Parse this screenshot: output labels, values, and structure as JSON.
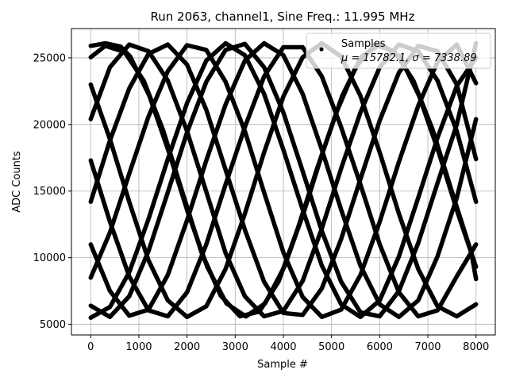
{
  "chart_data": {
    "type": "scatter",
    "title": "Run 2063, channel1, Sine Freq.: 11.995 MHz",
    "xlabel": "Sample #",
    "ylabel": "ADC Counts",
    "xlim": [
      -400,
      8400
    ],
    "ylim": [
      4200,
      27200
    ],
    "xticks": [
      0,
      1000,
      2000,
      3000,
      4000,
      5000,
      6000,
      7000,
      8000
    ],
    "xtick_labels": [
      "0",
      "1000",
      "2000",
      "3000",
      "4000",
      "5000",
      "6000",
      "7000",
      "8000"
    ],
    "yticks": [
      5000,
      10000,
      15000,
      20000,
      25000
    ],
    "ytick_labels": [
      "5000",
      "10000",
      "15000",
      "20000",
      "25000"
    ],
    "grid": true,
    "legend": {
      "placement": "top-right",
      "entries": [
        {
          "label": "Samples",
          "stats": "μ = 15782.1, σ = 7338.89"
        }
      ]
    },
    "series": [
      {
        "name": "Samples",
        "color": "#000000",
        "curves": [
          {
            "x": [
              0,
              310,
              620,
              820,
              1220,
              1620,
              2020,
              2420,
              2820,
              3220,
              3620,
              4020,
              4420,
              4820,
              5220,
              5620,
              6020,
              6420,
              6820,
              7220,
              7620,
              8000
            ],
            "y": [
              25900,
              26100,
              25850,
              25100,
              22130,
              17960,
              13360,
              9310,
              6560,
              5590,
              6560,
              9310,
              13360,
              17960,
              22130,
              25100,
              26050,
              25100,
              22130,
              17960,
              13360,
              9310
            ]
          },
          {
            "x": [
              0,
              300,
              700,
              1100,
              1500,
              1900,
              2300,
              2700,
              3100,
              3500,
              3900,
              4300,
              4700,
              5100,
              5500,
              5900,
              6300,
              6700,
              7100,
              7500,
              7900,
              8000
            ],
            "y": [
              25050,
              25900,
              25450,
              23300,
              19600,
              14950,
              10400,
              7150,
              5600,
              5950,
              8200,
              12200,
              16700,
              20900,
              24300,
              26000,
              25500,
              23300,
              19600,
              14950,
              10400,
              8400
            ]
          },
          {
            "x": [
              0,
              400,
              800,
              1200,
              1600,
              2000,
              2400,
              2800,
              3200,
              3600,
              4000,
              4400,
              4800,
              5200,
              5600,
              6000,
              6400,
              6800,
              7200,
              7600,
              8000
            ],
            "y": [
              23000,
              18900,
              14200,
              9800,
              6800,
              5550,
              6350,
              9150,
              13300,
              17900,
              22100,
              25050,
              26100,
              25100,
              22150,
              17900,
              13300,
              9150,
              6350,
              5600,
              6500
            ]
          },
          {
            "x": [
              0,
              400,
              800,
              1200,
              1600,
              2000,
              2400,
              2800,
              3200,
              3600,
              4000,
              4400,
              4800,
              5200,
              5600,
              6000,
              6400,
              6800,
              7200,
              7600,
              8000
            ],
            "y": [
              20400,
              24300,
              26000,
              25500,
              23300,
              19500,
              14950,
              10350,
              7100,
              5600,
              6000,
              8250,
              12200,
              16700,
              20900,
              24300,
              26000,
              25500,
              23300,
              19500,
              14200
            ]
          },
          {
            "x": [
              0,
              400,
              800,
              1200,
              1600,
              2000,
              2400,
              2800,
              3200,
              3600,
              4000,
              4400,
              4800,
              5200,
              5600,
              6000,
              6400,
              6800,
              7200,
              7600,
              8000
            ],
            "y": [
              17300,
              12700,
              8600,
              6050,
              5600,
              7400,
              11000,
              15500,
              19800,
              23600,
              25800,
              25800,
              23600,
              19800,
              15500,
              11000,
              7400,
              5600,
              6050,
              8600,
              11000
            ]
          },
          {
            "x": [
              0,
              400,
              800,
              1200,
              1600,
              2000,
              2400,
              2800,
              3200,
              3600,
              4000,
              4400,
              4800,
              5200,
              5600,
              6000,
              6400,
              6800,
              7200,
              7600,
              8000
            ],
            "y": [
              14200,
              18800,
              22700,
              25300,
              26000,
              24500,
              21100,
              16600,
              12100,
              8200,
              5850,
              5700,
              7700,
              11400,
              15900,
              20300,
              23900,
              25900,
              25500,
              23000,
              17400
            ]
          },
          {
            "x": [
              0,
              400,
              800,
              1200,
              1600,
              2000,
              2400,
              2800,
              3200,
              3600,
              4000,
              4400,
              4800,
              5200,
              5600,
              6000,
              6400,
              6800,
              7200,
              7600,
              8000
            ],
            "y": [
              11000,
              7500,
              5650,
              6100,
              8700,
              12800,
              17300,
              21500,
              24800,
              26100,
              25200,
              22300,
              18100,
              13600,
              9400,
              6500,
              5550,
              6800,
              10100,
              14500,
              20400
            ]
          },
          {
            "x": [
              0,
              400,
              800,
              1200,
              1600,
              2000,
              2400,
              2800,
              3200,
              3600,
              4000,
              4400,
              4800,
              5200,
              5600,
              6000,
              6400,
              6800,
              7200,
              7600,
              8000
            ],
            "y": [
              8500,
              11900,
              16300,
              20600,
              24000,
              25950,
              25600,
              23200,
              19500,
              14900,
              10400,
              7050,
              5550,
              6100,
              8700,
              12700,
              17200,
              21400,
              24700,
              26000,
              23100
            ]
          },
          {
            "x": [
              0,
              400,
              800,
              1200,
              1600,
              2000,
              2400,
              2800,
              3200,
              3600,
              4000,
              4400,
              4800,
              5200,
              5600,
              6000,
              6400,
              6800,
              7200,
              7600,
              8000
            ],
            "y": [
              6400,
              5550,
              7100,
              10500,
              14900,
              19400,
              23200,
              25600,
              26050,
              24300,
              20900,
              16500,
              12000,
              8200,
              5900,
              5600,
              7500,
              11100,
              15600,
              20000,
              26100
            ]
          },
          {
            "x": [
              0,
              400,
              800,
              1200,
              1600,
              2000,
              2400,
              2800,
              3200,
              3600,
              4000,
              4400,
              4800,
              5200,
              5600,
              6000,
              6400,
              6800,
              7200,
              7600,
              8000
            ],
            "y": [
              5500,
              6300,
              8900,
              12900,
              17400,
              21600,
              24800,
              26100,
              25200,
              22300,
              18100,
              13600,
              9400,
              6500,
              5550,
              6800,
              10100,
              14500,
              19000,
              22900,
              25000
            ]
          }
        ]
      }
    ]
  }
}
